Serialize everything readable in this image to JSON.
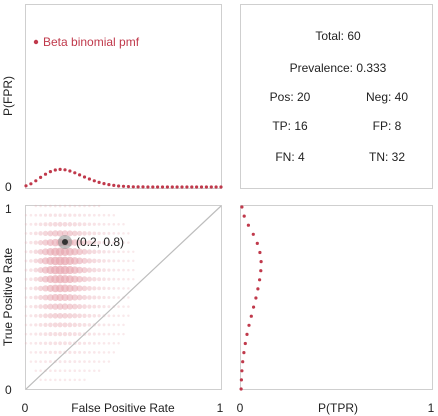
{
  "colors": {
    "marker": "#c0394b",
    "density": "#e8a9b2",
    "frame": "#cfcfcf",
    "diagonal": "#bdbdbd",
    "operating_point": "#555555",
    "text": "#222222"
  },
  "stats": {
    "total_label": "Total: 60",
    "prevalence_label": "Prevalence: 0.333",
    "pos_label": "Pos: 20",
    "neg_label": "Neg: 40",
    "tp_label": "TP: 16",
    "fp_label": "FP: 8",
    "fn_label": "FN: 4",
    "tn_label": "TN: 32"
  },
  "chart_data": [
    {
      "type": "scatter",
      "name": "fpr-pmf",
      "ylabel": "P(FPR)",
      "legend": "Beta binomial pmf",
      "legend_position": "top-left",
      "n": 40,
      "x_range": [
        0,
        1
      ],
      "y_ticks": [
        "0"
      ],
      "values": [
        0.012,
        0.032,
        0.062,
        0.096,
        0.128,
        0.154,
        0.17,
        0.176,
        0.172,
        0.16,
        0.142,
        0.121,
        0.1,
        0.08,
        0.062,
        0.046,
        0.034,
        0.024,
        0.016,
        0.01,
        0.007,
        0.004,
        0.002,
        0.001,
        0.001,
        0,
        0,
        0,
        0,
        0,
        0,
        0,
        0,
        0,
        0,
        0,
        0,
        0,
        0,
        0,
        0
      ],
      "y_max": 1.0
    },
    {
      "type": "scatter",
      "name": "roc",
      "xlabel": "False Positive Rate",
      "ylabel": "True Positive Rate",
      "x_ticks": [
        "0",
        "1"
      ],
      "y_ticks": [
        "0",
        "1"
      ],
      "xlim": [
        0,
        1
      ],
      "ylim": [
        0,
        1
      ],
      "operating_point": {
        "x": 0.2,
        "y": 0.8,
        "label": "(0.2, 0.8)"
      },
      "diagonal": true
    },
    {
      "type": "scatter",
      "name": "tpr-pmf",
      "xlabel": "P(TPR)",
      "x_ticks": [
        "0",
        "1"
      ],
      "n": 20,
      "values": [
        0.001,
        0.003,
        0.006,
        0.012,
        0.02,
        0.03,
        0.042,
        0.056,
        0.072,
        0.088,
        0.104,
        0.118,
        0.13,
        0.138,
        0.14,
        0.132,
        0.114,
        0.086,
        0.052,
        0.022,
        0.006
      ],
      "x_max": 1.0
    }
  ]
}
